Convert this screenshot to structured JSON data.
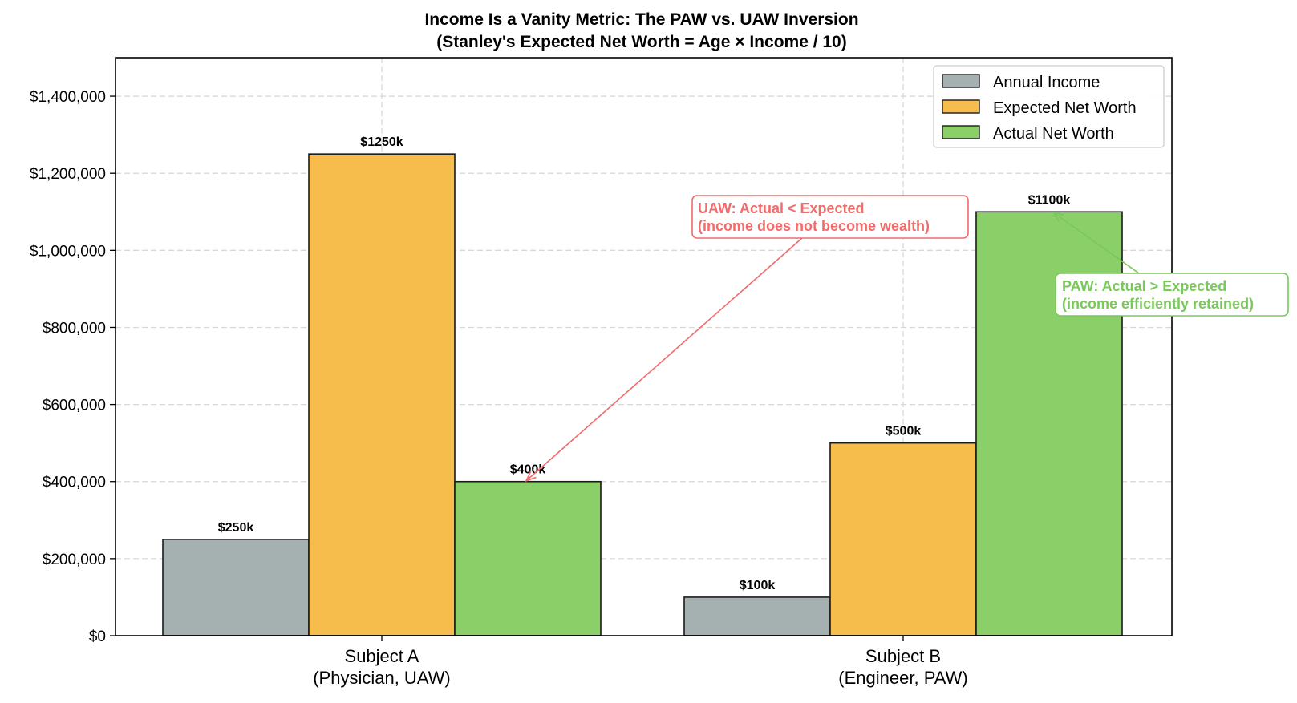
{
  "chart_data": {
    "type": "bar",
    "title": "Income Is a Vanity Metric: The PAW vs. UAW Inversion",
    "subtitle": "(Stanley's Expected Net Worth = Age × Income / 10)",
    "categories": [
      [
        "Subject A",
        "(Physician, UAW)"
      ],
      [
        "Subject B",
        "(Engineer, PAW)"
      ]
    ],
    "series": [
      {
        "name": "Annual Income",
        "color": "#a5b1b1",
        "values": [
          250000,
          100000
        ],
        "labels": [
          "$250k",
          "$100k"
        ]
      },
      {
        "name": "Expected Net Worth",
        "color": "#f6bc4c",
        "values": [
          1250000,
          500000
        ],
        "labels": [
          "$1250k",
          "$500k"
        ]
      },
      {
        "name": "Actual Net Worth",
        "color": "#8bcf69",
        "values": [
          400000,
          1100000
        ],
        "labels": [
          "$400k",
          "$1100k"
        ]
      }
    ],
    "ylim": [
      0,
      1500000
    ],
    "yticks": [
      0,
      200000,
      400000,
      600000,
      800000,
      1000000,
      1200000,
      1400000
    ],
    "ytick_labels": [
      "$0",
      "$200,000",
      "$400,000",
      "$600,000",
      "$800,000",
      "$1,000,000",
      "$1,200,000",
      "$1,400,000"
    ],
    "grid": true,
    "legend_position": "top-right",
    "annotations": [
      {
        "lines": [
          "UAW: Actual < Expected",
          "(income does not become wealth)"
        ],
        "color": "#f26b6b",
        "target_category": 0,
        "target_series": 2
      },
      {
        "lines": [
          "PAW: Actual > Expected",
          "(income efficiently retained)"
        ],
        "color": "#78c85a",
        "target_category": 1,
        "target_series": 2
      }
    ]
  }
}
